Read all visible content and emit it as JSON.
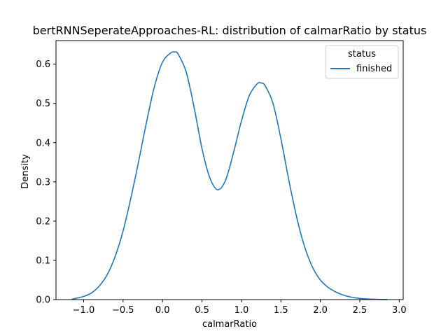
{
  "chart_data": {
    "type": "line",
    "title": "bertRNNSeperateApproaches-RL: distribution of calmarRatio by status",
    "xlabel": "calmarRatio",
    "ylabel": "Density",
    "xlim": [
      -1.35,
      3.05
    ],
    "ylim": [
      0,
      0.66
    ],
    "xticks": [
      -1.0,
      -0.5,
      0.0,
      0.5,
      1.0,
      1.5,
      2.0,
      2.5,
      3.0
    ],
    "xtick_labels": [
      "−1.0",
      "−0.5",
      "0.0",
      "0.5",
      "1.0",
      "1.5",
      "2.0",
      "2.5",
      "3.0"
    ],
    "yticks": [
      0.0,
      0.1,
      0.2,
      0.3,
      0.4,
      0.5,
      0.6
    ],
    "ytick_labels": [
      "0.0",
      "0.1",
      "0.2",
      "0.3",
      "0.4",
      "0.5",
      "0.6"
    ],
    "grid": false,
    "legend": {
      "title": "status",
      "placement": "top-right"
    },
    "series": [
      {
        "name": "finished",
        "color": "#1f77b4",
        "x": [
          -1.15,
          -1.0,
          -0.9,
          -0.8,
          -0.7,
          -0.6,
          -0.5,
          -0.4,
          -0.3,
          -0.2,
          -0.1,
          0.0,
          0.1,
          0.16,
          0.2,
          0.3,
          0.4,
          0.5,
          0.6,
          0.7,
          0.8,
          0.9,
          1.0,
          1.1,
          1.2,
          1.25,
          1.3,
          1.4,
          1.5,
          1.6,
          1.7,
          1.8,
          1.9,
          2.0,
          2.1,
          2.2,
          2.3,
          2.4,
          2.5,
          2.6,
          2.7,
          2.85
        ],
        "y": [
          0.001,
          0.008,
          0.017,
          0.035,
          0.064,
          0.11,
          0.175,
          0.26,
          0.355,
          0.455,
          0.545,
          0.605,
          0.628,
          0.631,
          0.625,
          0.58,
          0.49,
          0.385,
          0.31,
          0.28,
          0.305,
          0.375,
          0.455,
          0.52,
          0.55,
          0.552,
          0.545,
          0.5,
          0.41,
          0.305,
          0.21,
          0.135,
          0.083,
          0.05,
          0.031,
          0.019,
          0.011,
          0.006,
          0.003,
          0.0015,
          0.0007,
          0.0001
        ]
      }
    ]
  }
}
